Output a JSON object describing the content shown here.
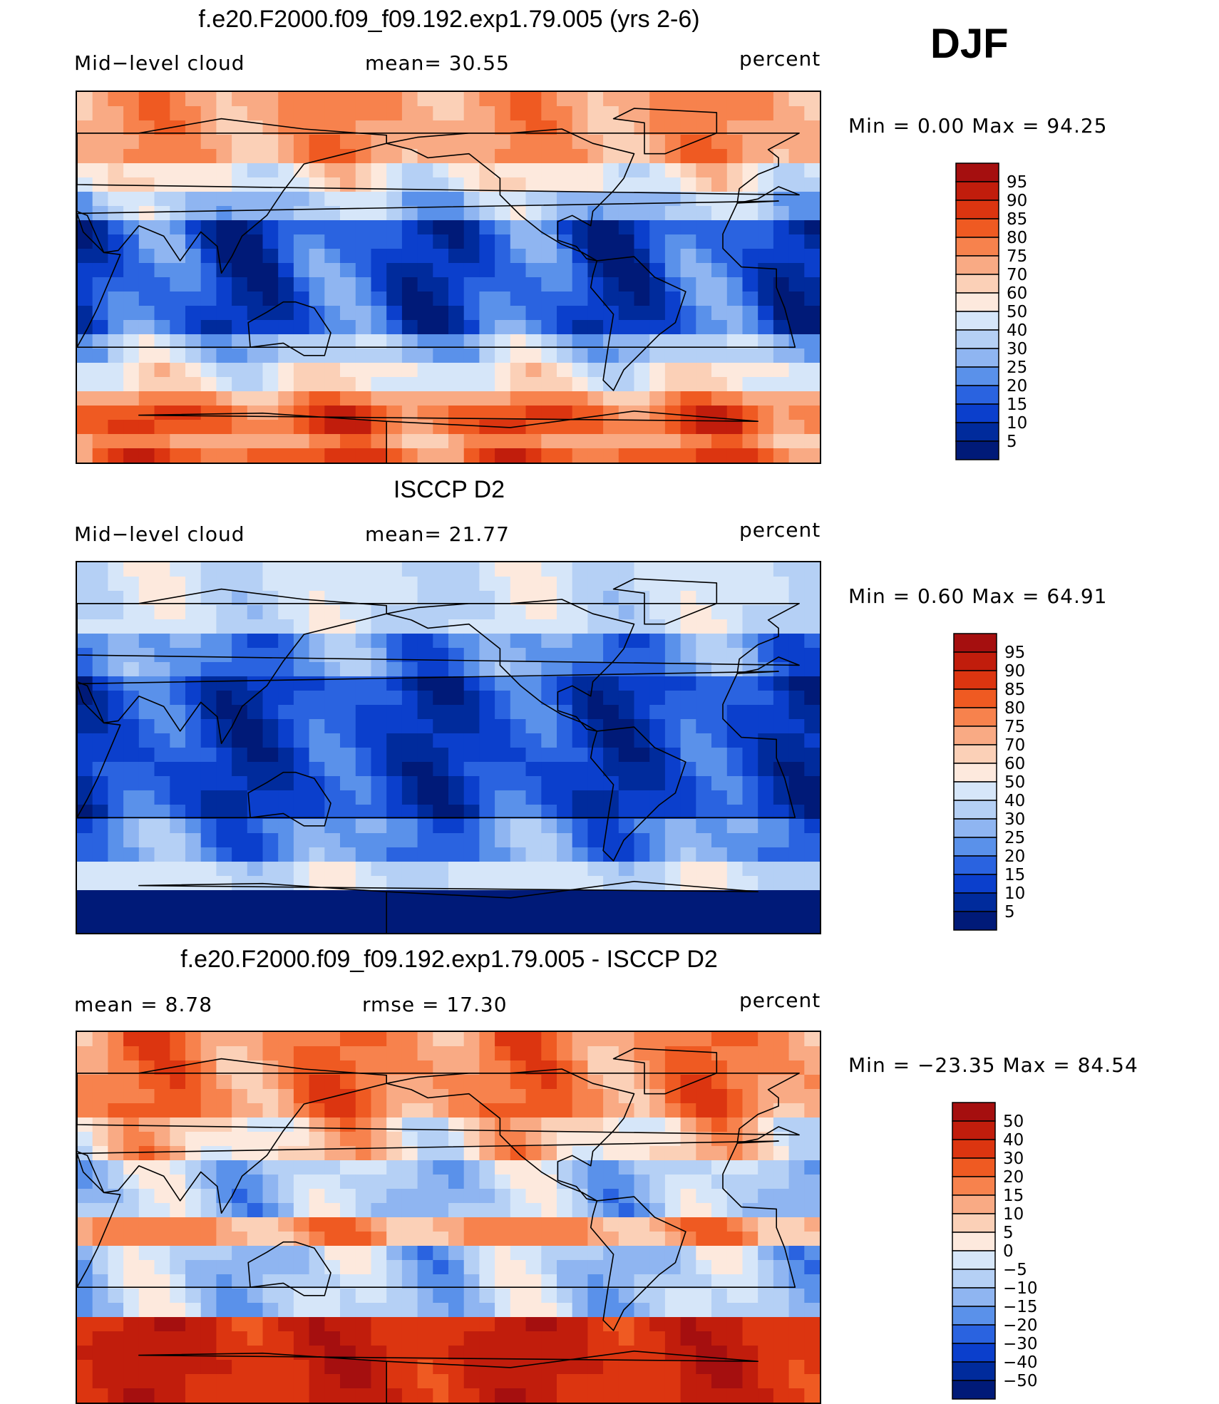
{
  "season": "DJF",
  "panels": [
    {
      "id": "model",
      "title": "f.e20.F2000.f09_f09.192.exp1.79.005 (yrs 2-6)",
      "left_text": "Mid−level cloud",
      "stat1": "mean=   30.55",
      "stat2": "",
      "units": "percent",
      "minmax": "Min  =    0.00  Max  =   94.25",
      "colorbar_labels": [
        "95",
        "90",
        "85",
        "80",
        "75",
        "70",
        "60",
        "50",
        "40",
        "30",
        "25",
        "20",
        "15",
        "10",
        "5"
      ],
      "colorbar_colors": [
        "#a50f0f",
        "#c11d0c",
        "#dc3510",
        "#ef5a22",
        "#f7824d",
        "#f9aa84",
        "#fbd0b7",
        "#fde9dd",
        "#d6e6f9",
        "#b5d0f5",
        "#8fb5f1",
        "#5a91ea",
        "#2a63e0",
        "#0b3fcc",
        "#002b9c",
        "#001a78"
      ]
    },
    {
      "id": "obs",
      "title": "ISCCP D2",
      "left_text": "Mid−level cloud",
      "stat1": "mean=   21.77",
      "stat2": "",
      "units": "percent",
      "minmax": "Min  =    0.60  Max  =   64.91",
      "colorbar_labels": [
        "95",
        "90",
        "85",
        "80",
        "75",
        "70",
        "60",
        "50",
        "40",
        "30",
        "25",
        "20",
        "15",
        "10",
        "5"
      ],
      "colorbar_colors": [
        "#a50f0f",
        "#c11d0c",
        "#dc3510",
        "#ef5a22",
        "#f7824d",
        "#f9aa84",
        "#fbd0b7",
        "#fde9dd",
        "#d6e6f9",
        "#b5d0f5",
        "#8fb5f1",
        "#5a91ea",
        "#2a63e0",
        "#0b3fcc",
        "#002b9c",
        "#001a78"
      ]
    },
    {
      "id": "diff",
      "title": "f.e20.F2000.f09_f09.192.exp1.79.005 - ISCCP D2",
      "left_text": "mean  =      8.78",
      "stat1": "",
      "stat2": "rmse  =    17.30",
      "units": "percent",
      "minmax": "Min  = −23.35  Max  =    84.54",
      "colorbar_labels": [
        "50",
        "40",
        "30",
        "20",
        "15",
        "10",
        "5",
        "0",
        "−5",
        "−10",
        "−15",
        "−20",
        "−30",
        "−40",
        "−50"
      ],
      "colorbar_colors": [
        "#a50f0f",
        "#c11d0c",
        "#dc3510",
        "#ef5a22",
        "#f7824d",
        "#f9aa84",
        "#fbd0b7",
        "#fde9dd",
        "#d6e6f9",
        "#b5d0f5",
        "#8fb5f1",
        "#5a91ea",
        "#2a63e0",
        "#0b3fcc",
        "#002b9c",
        "#001a78"
      ]
    }
  ]
}
